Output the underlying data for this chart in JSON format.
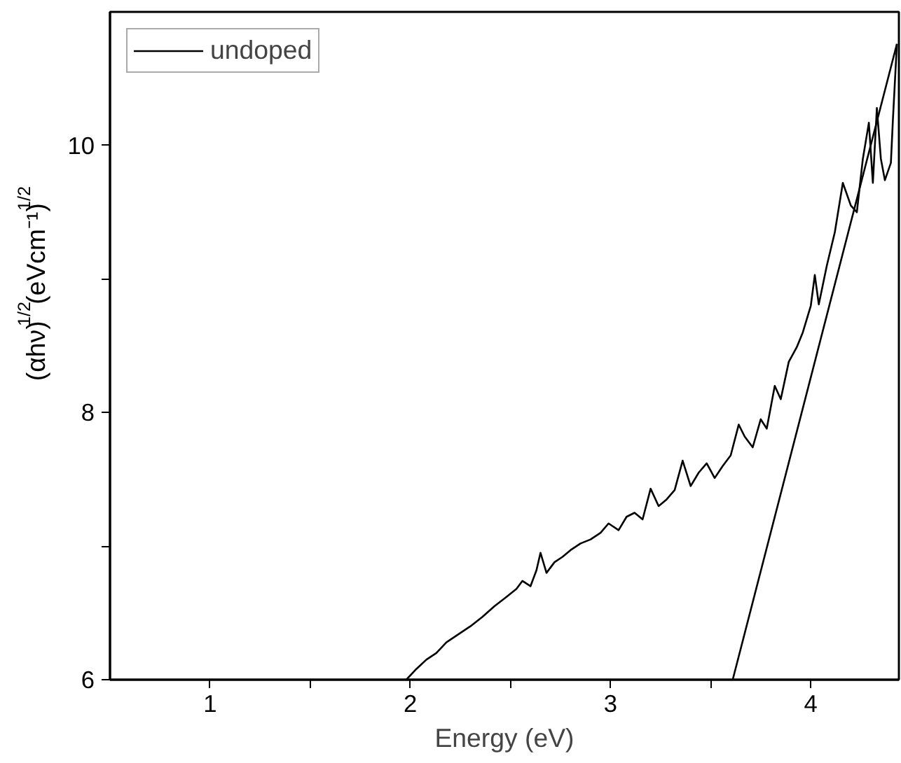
{
  "chart_data": {
    "type": "line",
    "xlabel": "Energy (eV)",
    "ylabel": "(αhν)$^{1/2}$(eVcm⁻¹)$^{1/2}$",
    "xlim": [
      0.5,
      4.44
    ],
    "ylim": [
      6,
      11
    ],
    "xticks": [
      1,
      {
        "value": 1.5,
        "label": null
      },
      2,
      {
        "value": 2.5,
        "label": null
      },
      3,
      {
        "value": 3.5,
        "label": null
      },
      4
    ],
    "yticks": [
      6,
      {
        "value": 7,
        "label": null
      },
      8,
      {
        "value": 9,
        "label": null
      },
      10
    ],
    "grid": false,
    "legend": "top left",
    "series": [
      {
        "name": "undoped",
        "color": "#000000",
        "x": [
          1.98,
          2.03,
          2.08,
          2.13,
          2.18,
          2.24,
          2.3,
          2.36,
          2.42,
          2.48,
          2.53,
          2.56,
          2.6,
          2.63,
          2.65,
          2.68,
          2.72,
          2.76,
          2.8,
          2.85,
          2.9,
          2.95,
          2.99,
          3.04,
          3.08,
          3.12,
          3.16,
          3.2,
          3.24,
          3.28,
          3.32,
          3.36,
          3.4,
          3.44,
          3.48,
          3.52,
          3.56,
          3.6,
          3.64,
          3.67,
          3.71,
          3.75,
          3.78,
          3.82,
          3.85,
          3.89,
          3.93,
          3.96,
          4.0,
          4.02,
          4.04,
          4.08,
          4.12,
          4.16,
          4.2,
          4.23,
          4.26,
          4.29,
          4.31,
          4.33,
          4.35,
          4.37,
          4.4,
          4.41,
          4.43
        ],
        "values": [
          6.0,
          6.08,
          6.15,
          6.2,
          6.28,
          6.34,
          6.4,
          6.47,
          6.55,
          6.62,
          6.68,
          6.74,
          6.7,
          6.82,
          6.95,
          6.8,
          6.88,
          6.92,
          6.97,
          7.02,
          7.05,
          7.1,
          7.17,
          7.12,
          7.22,
          7.25,
          7.2,
          7.43,
          7.3,
          7.35,
          7.42,
          7.64,
          7.45,
          7.55,
          7.62,
          7.51,
          7.6,
          7.68,
          7.91,
          7.82,
          7.74,
          7.95,
          7.88,
          8.2,
          8.1,
          8.38,
          8.49,
          8.6,
          8.8,
          9.03,
          8.81,
          9.1,
          9.35,
          9.72,
          9.55,
          9.5,
          9.9,
          10.17,
          9.72,
          10.28,
          9.9,
          9.74,
          9.87,
          10.19,
          10.76
        ]
      },
      {
        "color": "#000000",
        "x": [
          3.61,
          4.43
        ],
        "values": [
          6.0,
          10.76
        ]
      }
    ]
  }
}
